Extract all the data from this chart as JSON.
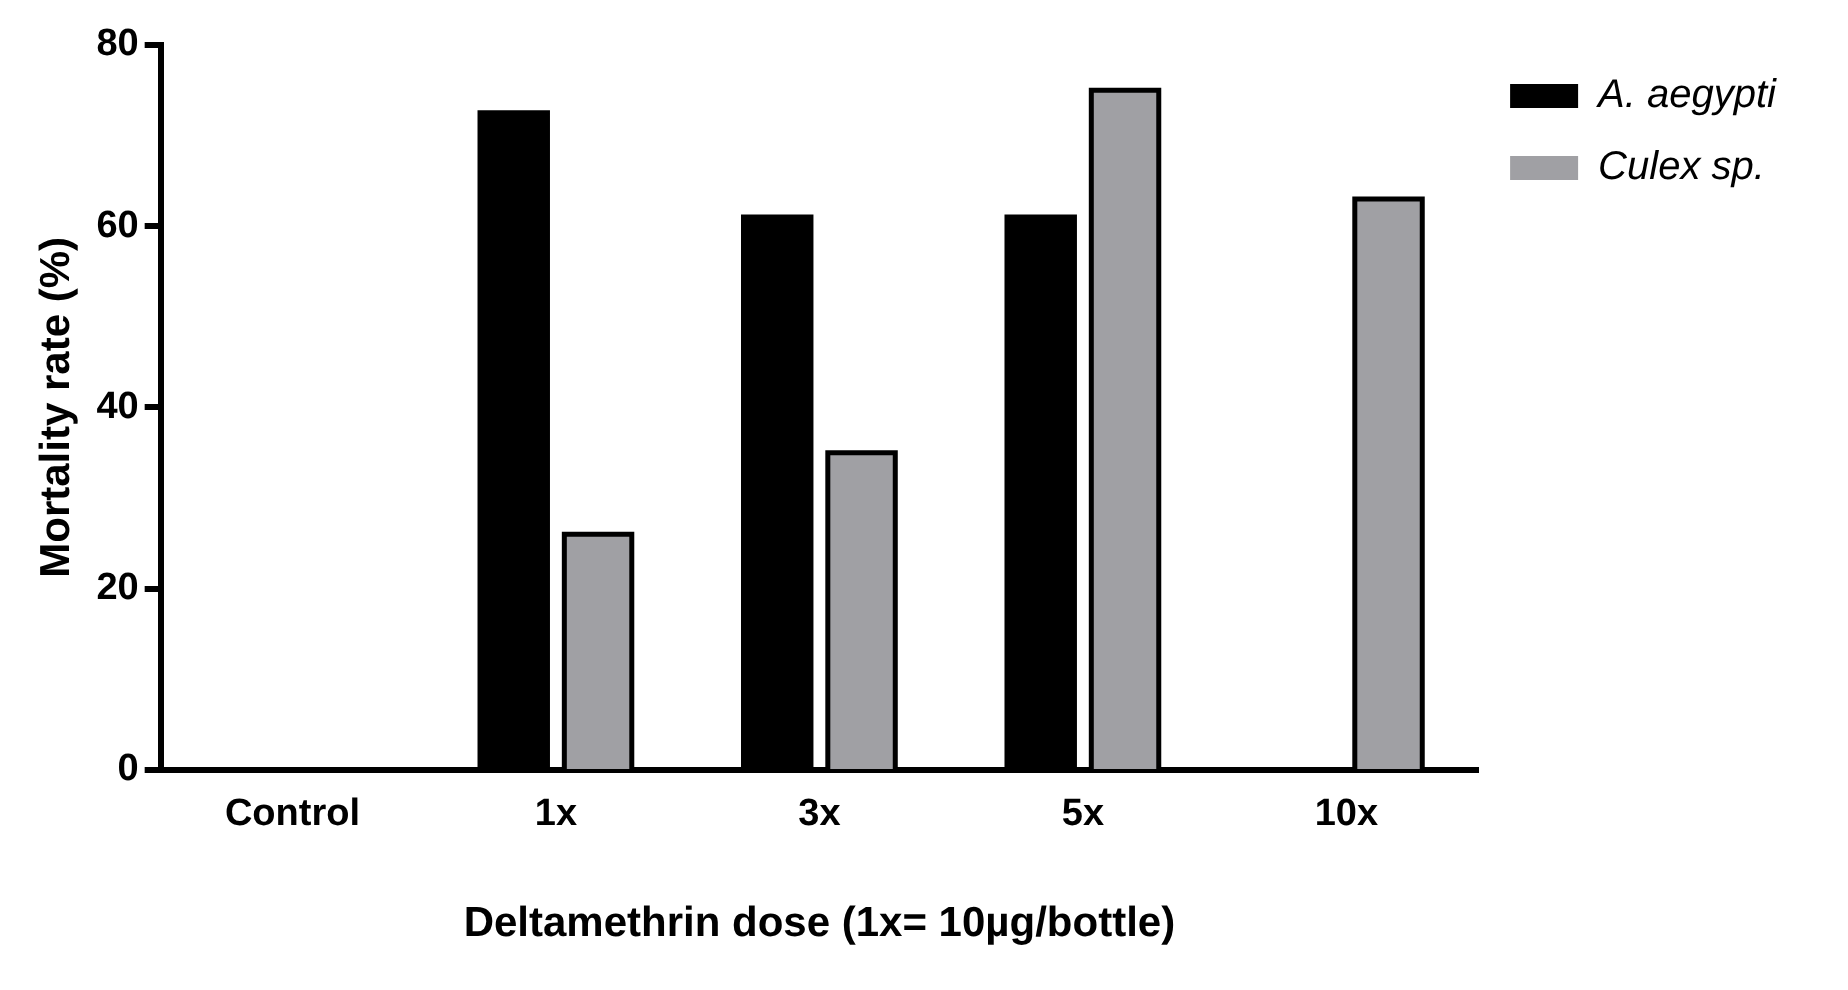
{
  "chart_data": {
    "type": "bar",
    "xlabel": "Deltamethrin dose (1x= 10µg/bottle)",
    "ylabel": "Mortality rate (%)",
    "categories": [
      "Control",
      "1x",
      "3x",
      "5x",
      "10x"
    ],
    "series": [
      {
        "name": "A. aegypti",
        "color": "#000000",
        "values": [
          0,
          72.5,
          61,
          61,
          0
        ]
      },
      {
        "name": "Culex sp.",
        "color": "#a0a0a4",
        "values": [
          0,
          26,
          35,
          75,
          63
        ]
      }
    ],
    "ylim": [
      0,
      80
    ],
    "yticks": [
      0,
      20,
      40,
      60,
      80
    ],
    "grid": false,
    "legend": "top right"
  }
}
